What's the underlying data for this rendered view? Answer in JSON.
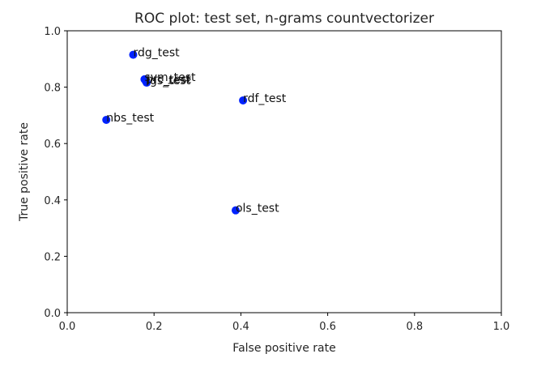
{
  "chart_data": {
    "type": "scatter",
    "title": "ROC plot: test set, n-grams countvectorizer",
    "xlabel": "False positive rate",
    "ylabel": "True positive rate",
    "xlim": [
      0.0,
      1.0
    ],
    "ylim": [
      0.0,
      1.0
    ],
    "xticks": [
      "0.0",
      "0.2",
      "0.4",
      "0.6",
      "0.8",
      "1.0"
    ],
    "yticks": [
      "0.0",
      "0.2",
      "0.4",
      "0.6",
      "0.8",
      "1.0"
    ],
    "grid": false,
    "legend": "none",
    "marker_color": "#0022ff",
    "points": [
      {
        "label": "rdg_test",
        "x": 0.152,
        "y": 0.915
      },
      {
        "label": "svm_test",
        "x": 0.178,
        "y": 0.828
      },
      {
        "label": "lgs_test",
        "x": 0.183,
        "y": 0.816
      },
      {
        "label": "prc_test",
        "x": 0.181,
        "y": 0.821
      },
      {
        "label": "rdf_test",
        "x": 0.405,
        "y": 0.753
      },
      {
        "label": "nbs_test",
        "x": 0.09,
        "y": 0.684
      },
      {
        "label": "ols_test",
        "x": 0.388,
        "y": 0.363
      }
    ]
  }
}
